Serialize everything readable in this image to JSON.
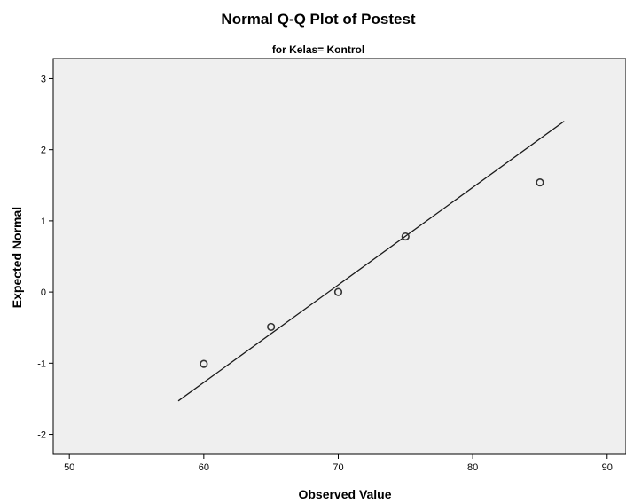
{
  "chart_data": {
    "type": "scatter",
    "title": "Normal Q-Q Plot of Postest",
    "subtitle": "for Kelas= Kontrol",
    "xlabel": "Observed Value",
    "ylabel": "Expected Normal",
    "xlim": [
      48.8,
      91.4
    ],
    "ylim": [
      -2.28,
      3.28
    ],
    "x_ticks": [
      50,
      60,
      70,
      80,
      90
    ],
    "x_tick_labels": [
      "50",
      "60",
      "70",
      "80",
      "90"
    ],
    "y_ticks": [
      -2,
      -1,
      0,
      1,
      2,
      3
    ],
    "y_tick_labels": [
      "-2",
      "-1",
      "0",
      "1",
      "2",
      "3"
    ],
    "grid": false,
    "points": [
      {
        "x": 60,
        "y": -1.01
      },
      {
        "x": 65,
        "y": -0.49
      },
      {
        "x": 70,
        "y": 0.0
      },
      {
        "x": 75,
        "y": 0.78
      },
      {
        "x": 85,
        "y": 1.54
      }
    ],
    "reference_line": {
      "x": [
        58.1,
        86.8
      ],
      "y": [
        -1.53,
        2.4
      ]
    },
    "colors": {
      "plot_background": "#efefef",
      "marker": "#333333",
      "line": "#1a1a1a"
    }
  }
}
